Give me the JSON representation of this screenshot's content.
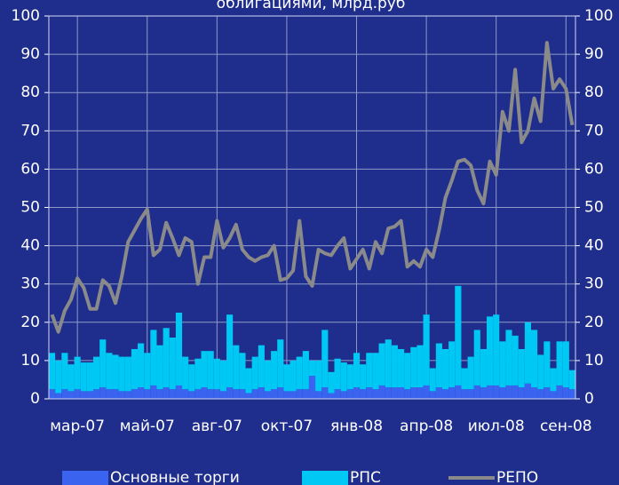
{
  "chart_data": {
    "type": "bar",
    "stacked": true,
    "title": "облигациями, млрд.руб",
    "categories": [
      null,
      null,
      null,
      null,
      "мар-07",
      null,
      null,
      null,
      null,
      null,
      null,
      null,
      null,
      null,
      null,
      "май-07",
      null,
      null,
      null,
      null,
      null,
      null,
      null,
      null,
      null,
      null,
      "авг-07",
      null,
      null,
      null,
      null,
      null,
      null,
      null,
      null,
      null,
      null,
      "окт-07",
      null,
      null,
      null,
      null,
      null,
      null,
      null,
      null,
      null,
      null,
      "янв-08",
      null,
      null,
      null,
      null,
      null,
      null,
      null,
      null,
      null,
      null,
      "апр-08",
      null,
      null,
      null,
      null,
      null,
      null,
      null,
      null,
      null,
      null,
      "июл-08",
      null,
      null,
      null,
      null,
      null,
      null,
      null,
      null,
      null,
      null,
      "сен-08",
      null
    ],
    "series": [
      {
        "name": "Основные торги",
        "type": "bar",
        "color": "#3a63f0",
        "values": [
          2.5,
          1.5,
          2.5,
          2,
          2.5,
          2,
          2,
          2.5,
          3,
          2.5,
          2.5,
          2,
          2,
          2.5,
          3,
          2.5,
          3.5,
          2.5,
          3,
          2.5,
          3.5,
          2.5,
          2,
          2.5,
          3,
          2.5,
          2.5,
          2,
          3,
          2.5,
          2.5,
          1.5,
          2.5,
          3,
          2,
          2.5,
          3,
          2,
          2,
          2.5,
          2.5,
          6,
          2,
          3,
          1.5,
          2.5,
          2,
          2.5,
          3,
          2.5,
          3,
          2.5,
          3.5,
          3,
          3,
          3,
          2.5,
          3,
          3,
          3.5,
          2,
          3,
          2.5,
          3,
          3.5,
          2.5,
          2.5,
          3.5,
          3,
          3.5,
          3.5,
          3,
          3.5,
          3.5,
          3,
          4,
          3,
          2.5,
          3,
          2,
          3.5,
          3,
          2.5
        ]
      },
      {
        "name": "РПС",
        "type": "bar",
        "color": "#00c8f5",
        "values": [
          9.5,
          8.5,
          9.5,
          7,
          8.5,
          7.5,
          7.5,
          8.5,
          12.5,
          9.5,
          9,
          9,
          9,
          10.5,
          11.5,
          9.5,
          14.5,
          11.5,
          15.5,
          13.5,
          19,
          8.5,
          7,
          8,
          9.5,
          10,
          8,
          8,
          19,
          11.5,
          9.5,
          6.5,
          8.5,
          11,
          8,
          10,
          12.5,
          7,
          8,
          8.5,
          10,
          4,
          8,
          15,
          5.5,
          8,
          7.5,
          6.5,
          9,
          6.5,
          9,
          9.5,
          11,
          12.5,
          11,
          10,
          9.5,
          10.5,
          11,
          18.5,
          6,
          11.5,
          10.5,
          12,
          26,
          5.5,
          8.5,
          14.5,
          10,
          18,
          18.5,
          12,
          14.5,
          13,
          10,
          16,
          15,
          9,
          12,
          6,
          11.5,
          12,
          5
        ]
      },
      {
        "name": "РЕПО",
        "type": "line",
        "axis": "y2",
        "color": "#8a8a8a",
        "values": [
          22,
          17.5,
          23,
          26,
          31.5,
          29,
          23.5,
          23.5,
          31,
          29.5,
          25,
          32,
          41,
          44,
          47,
          49.5,
          37.5,
          39,
          46,
          42,
          37.5,
          42,
          41,
          30,
          37,
          37,
          46.5,
          39.5,
          42,
          45.5,
          39,
          37,
          36,
          37,
          37.5,
          40,
          31,
          31.5,
          33.5,
          46.5,
          32,
          29.5,
          39,
          38,
          37.5,
          40,
          42,
          34,
          36.5,
          39,
          34,
          41,
          38,
          44.5,
          45,
          46.5,
          34.5,
          36,
          34.5,
          39,
          37,
          44,
          52.5,
          57,
          62,
          62.5,
          61,
          54.5,
          51,
          62,
          58.5,
          75,
          70,
          86,
          67,
          70,
          78.5,
          72.5,
          93,
          81,
          83.5,
          81,
          71.5
        ]
      }
    ],
    "ylim": [
      0,
      100
    ],
    "yticks": [
      0,
      10,
      20,
      30,
      40,
      50,
      60,
      70,
      80,
      90,
      100
    ],
    "y2lim": [
      0,
      100
    ],
    "y2ticks": [
      0,
      10,
      20,
      30,
      40,
      50,
      60,
      70,
      80,
      90,
      100
    ],
    "grid": true,
    "legend": "bottom"
  }
}
